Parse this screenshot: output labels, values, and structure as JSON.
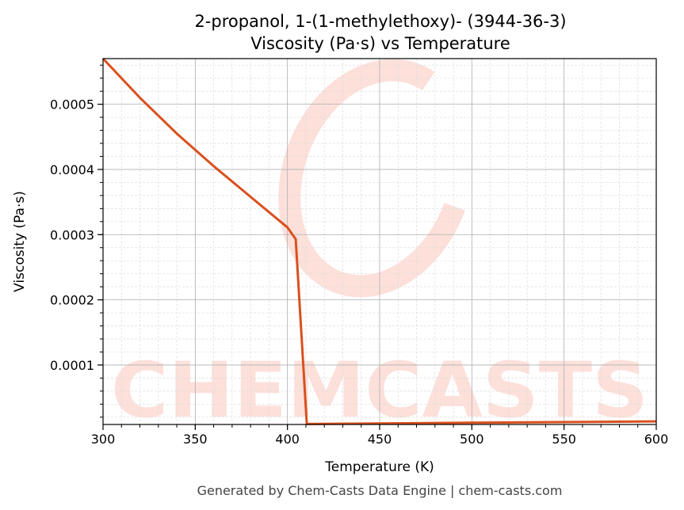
{
  "chart_data": {
    "type": "line",
    "title": "2-propanol, 1-(1-methylethoxy)- (3944-36-3)",
    "subtitle": "Viscosity (Pa·s) vs Temperature",
    "xlabel": "Temperature (K)",
    "ylabel": "Viscosity (Pa·s)",
    "xlim": [
      300,
      600
    ],
    "ylim": [
      8.8e-06,
      0.00057
    ],
    "xticks": [
      300,
      350,
      400,
      450,
      500,
      550,
      600
    ],
    "xtick_labels": [
      "300",
      "350",
      "400",
      "450",
      "500",
      "550",
      "600"
    ],
    "yticks": [
      0.0001,
      0.0002,
      0.0003,
      0.0004,
      0.0005
    ],
    "ytick_labels": [
      "0.0001",
      "0.0002",
      "0.0003",
      "0.0004",
      "0.0005"
    ],
    "grid": true,
    "series": [
      {
        "name": "Viscosity",
        "color": "#d9501e",
        "x": [
          300,
          320,
          340,
          360,
          380,
          400,
          404.5,
          410.5,
          500,
          600
        ],
        "y": [
          0.00057,
          0.00051,
          0.000455,
          0.000405,
          0.000358,
          0.000311,
          0.000293,
          9.5e-06,
          1.15e-05,
          1.35e-05
        ]
      }
    ],
    "watermark": "CHEMCASTS"
  },
  "footer": "Generated by Chem-Casts Data Engine | chem-casts.com"
}
